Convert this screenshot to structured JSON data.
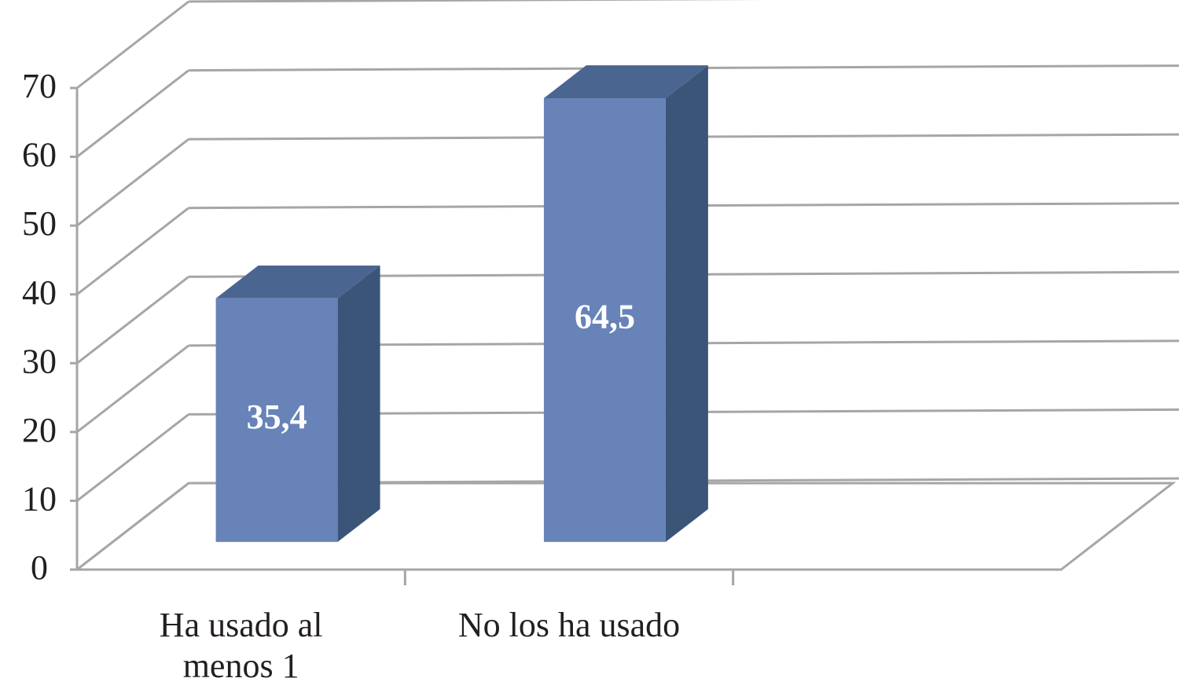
{
  "chart_data": {
    "type": "bar3d",
    "categories": [
      "Ha usado al menos 1",
      "No los ha usado",
      null
    ],
    "values": [
      35.4,
      64.5,
      null
    ],
    "value_labels": [
      "35,4",
      "64,5",
      null
    ],
    "color": "#6783b8",
    "ylim": [
      0,
      70
    ],
    "yticks": [
      0,
      10,
      20,
      30,
      40,
      50,
      60,
      70
    ],
    "grid": true
  }
}
